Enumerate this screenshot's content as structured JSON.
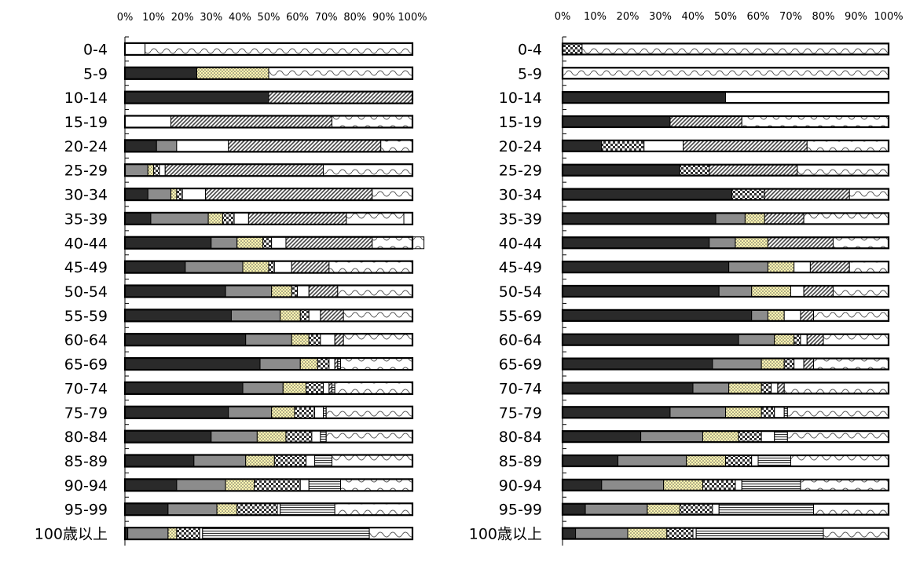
{
  "colors": {
    "s1": "#2a2a2a",
    "s2": "#8c8c8c",
    "s3_bg": "#fff7b2",
    "s3_dot": "#555555",
    "s4_fg": "#333333",
    "s5": "#ffffff",
    "s6_fg": "#444444",
    "s7_fg": "#333333",
    "s8_fg": "#555555",
    "border": "#000000"
  },
  "chart_data": [
    {
      "type": "bar",
      "orientation": "horizontal",
      "stacked": true,
      "xlim": [
        0,
        100
      ],
      "x_ticks": [
        "0%",
        "10%",
        "20%",
        "30%",
        "40%",
        "50%",
        "60%",
        "70%",
        "80%",
        "90%",
        "100%"
      ],
      "categories": [
        "0-4",
        "5-9",
        "10-14",
        "15-19",
        "20-24",
        "25-29",
        "30-34",
        "35-39",
        "40-44",
        "45-49",
        "50-54",
        "55-59",
        "60-64",
        "65-69",
        "70-74",
        "75-79",
        "80-84",
        "85-89",
        "90-94",
        "95-99",
        "100歳以上"
      ],
      "series": [
        {
          "key": "s1",
          "pattern": "solid-dark",
          "values": [
            0,
            25,
            50,
            0,
            11,
            0,
            8,
            9,
            30,
            21,
            35,
            37,
            42,
            47,
            41,
            36,
            30,
            24,
            18,
            15,
            1
          ]
        },
        {
          "key": "s2",
          "pattern": "solid-gray",
          "values": [
            0,
            0,
            0,
            0,
            7,
            8,
            8,
            20,
            9,
            20,
            16,
            17,
            16,
            14,
            14,
            15,
            16,
            18,
            17,
            17,
            14
          ]
        },
        {
          "key": "s3",
          "pattern": "dots",
          "values": [
            0,
            25,
            0,
            0,
            0,
            2,
            2,
            5,
            9,
            9,
            7,
            7,
            6,
            6,
            8,
            8,
            10,
            10,
            10,
            7,
            3
          ]
        },
        {
          "key": "s4",
          "pattern": "checker",
          "values": [
            0,
            0,
            0,
            0,
            0,
            2,
            2,
            4,
            3,
            2,
            2,
            3,
            4,
            4,
            6,
            7,
            9,
            11,
            16,
            14,
            8
          ]
        },
        {
          "key": "s5",
          "pattern": "white",
          "values": [
            7,
            0,
            0,
            16,
            18,
            2,
            8,
            5,
            5,
            6,
            4,
            4,
            5,
            2,
            2,
            3,
            3,
            3,
            3,
            1,
            1
          ]
        },
        {
          "key": "s6",
          "pattern": "diagonal",
          "values": [
            0,
            0,
            50,
            56,
            53,
            55,
            58,
            34,
            30,
            13,
            10,
            8,
            3,
            1,
            1,
            0,
            0,
            0,
            0,
            0,
            0
          ]
        },
        {
          "key": "s7",
          "pattern": "hlines",
          "values": [
            0,
            0,
            0,
            0,
            0,
            0,
            0,
            0,
            0,
            0,
            0,
            0,
            0,
            1,
            1,
            1,
            2,
            6,
            11,
            19,
            58
          ]
        },
        {
          "key": "s8",
          "pattern": "wave",
          "values": [
            93,
            50,
            0,
            28,
            11,
            31,
            14,
            20,
            18,
            29,
            26,
            24,
            24,
            25,
            27,
            30,
            30,
            28,
            25,
            27,
            15
          ]
        }
      ]
    },
    {
      "type": "bar",
      "orientation": "horizontal",
      "stacked": true,
      "xlim": [
        0,
        100
      ],
      "x_ticks": [
        "0%",
        "10%",
        "20%",
        "30%",
        "40%",
        "50%",
        "60%",
        "70%",
        "80%",
        "90%",
        "100%"
      ],
      "categories": [
        "0-4",
        "5-9",
        "10-14",
        "15-19",
        "20-24",
        "25-29",
        "30-34",
        "35-39",
        "40-44",
        "45-49",
        "50-54",
        "55-69",
        "60-64",
        "65-69",
        "70-74",
        "75-79",
        "80-84",
        "85-89",
        "90-94",
        "95-99",
        "100歳以上"
      ],
      "series": [
        {
          "key": "s1",
          "pattern": "solid-dark",
          "values": [
            0,
            0,
            50,
            33,
            12,
            36,
            52,
            47,
            45,
            51,
            48,
            58,
            54,
            46,
            40,
            33,
            24,
            17,
            12,
            7,
            4
          ]
        },
        {
          "key": "s2",
          "pattern": "solid-gray",
          "values": [
            0,
            0,
            0,
            0,
            0,
            0,
            0,
            9,
            8,
            12,
            10,
            5,
            11,
            15,
            11,
            17,
            19,
            21,
            19,
            19,
            16
          ]
        },
        {
          "key": "s3",
          "pattern": "dots",
          "values": [
            0,
            0,
            0,
            0,
            0,
            0,
            0,
            6,
            10,
            8,
            12,
            5,
            6,
            7,
            10,
            11,
            11,
            12,
            12,
            10,
            12
          ]
        },
        {
          "key": "s4",
          "pattern": "checker",
          "values": [
            6,
            0,
            0,
            0,
            13,
            9,
            10,
            0,
            0,
            0,
            0,
            0,
            2,
            3,
            3,
            4,
            7,
            8,
            10,
            10,
            8
          ]
        },
        {
          "key": "s5",
          "pattern": "white",
          "values": [
            0,
            0,
            50,
            0,
            12,
            0,
            0,
            0,
            0,
            5,
            4,
            5,
            2,
            3,
            2,
            3,
            4,
            2,
            2,
            2,
            1
          ]
        },
        {
          "key": "s6",
          "pattern": "diagonal",
          "values": [
            0,
            0,
            0,
            22,
            38,
            27,
            26,
            12,
            20,
            12,
            9,
            4,
            5,
            3,
            2,
            0,
            0,
            0,
            0,
            0,
            0
          ]
        },
        {
          "key": "s7",
          "pattern": "hlines",
          "values": [
            0,
            0,
            0,
            0,
            0,
            0,
            0,
            0,
            0,
            0,
            0,
            0,
            0,
            0,
            0,
            1,
            4,
            10,
            18,
            29,
            39
          ]
        },
        {
          "key": "s8",
          "pattern": "wave",
          "values": [
            94,
            100,
            0,
            45,
            25,
            28,
            12,
            26,
            17,
            12,
            17,
            23,
            20,
            23,
            32,
            31,
            31,
            30,
            27,
            23,
            20
          ]
        }
      ]
    }
  ]
}
